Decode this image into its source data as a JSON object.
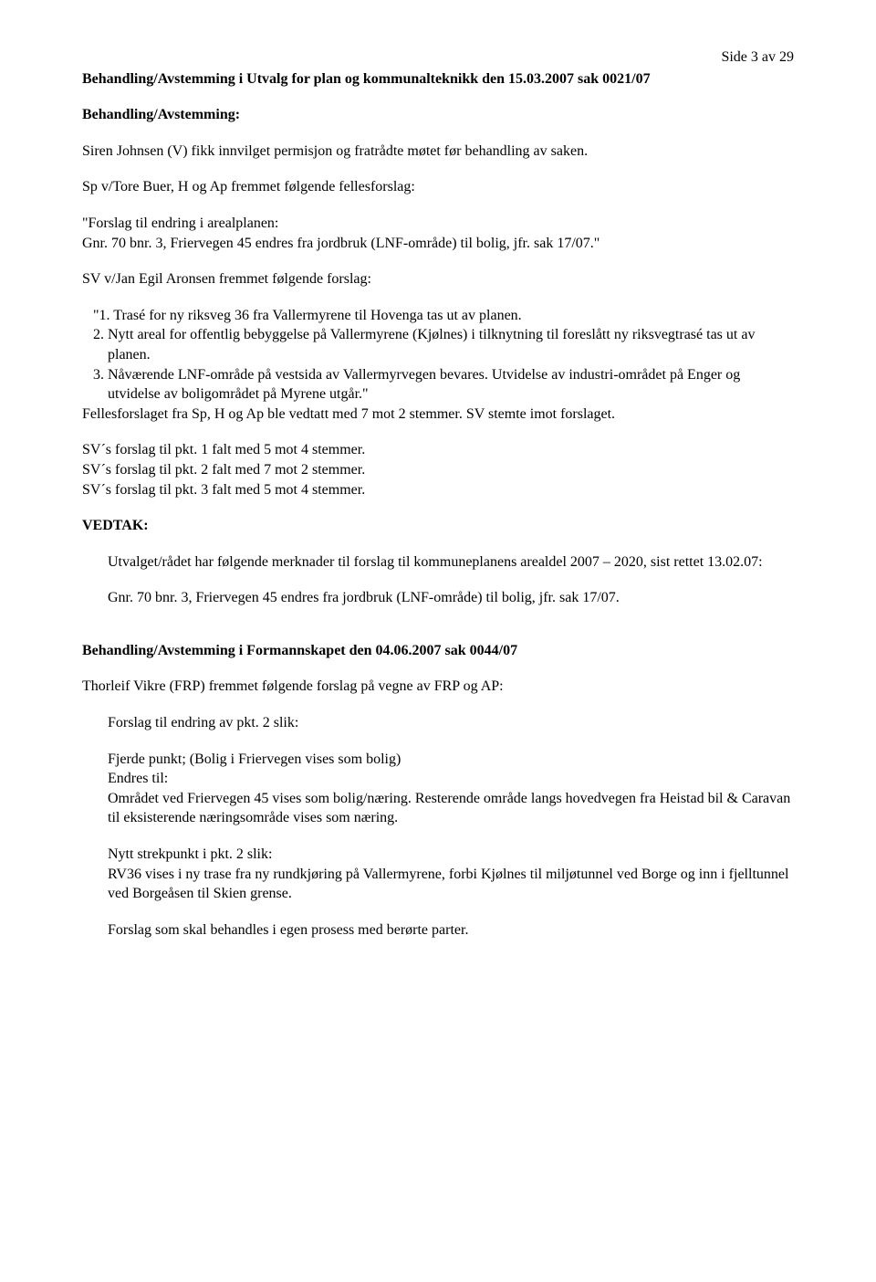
{
  "pageNumber": "Side 3 av 29",
  "title1": "Behandling/Avstemming  i Utvalg for plan og kommunalteknikk den 15.03.2007 sak 0021/07",
  "heading1": "Behandling/Avstemming:",
  "p1": "Siren Johnsen (V) fikk innvilget permisjon og fratrådte møtet før behandling av saken.",
  "p2": "Sp v/Tore Buer, H og Ap fremmet følgende fellesforslag:",
  "p3a": "\"Forslag til endring i arealplanen:",
  "p3b": "  Gnr. 70 bnr. 3, Friervegen 45 endres fra jordbruk (LNF-område) til bolig, jfr. sak 17/07.\"",
  "p4": "SV v/Jan Egil Aronsen fremmet følgende forslag:",
  "li1": "\"1. Trasé for ny riksveg 36 fra Vallermyrene til Hovenga tas ut av planen.",
  "li2": "  2. Nytt areal for offentlig bebyggelse på Vallermyrene (Kjølnes) i tilknytning til foreslått ny riksvegtrasé tas ut av planen.",
  "li3": "  3. Nåværende LNF-område på vestsida av Vallermyrvegen bevares. Utvidelse av industri-området på Enger og utvidelse av boligområdet på Myrene utgår.\"",
  "p5": "Fellesforslaget fra Sp, H og Ap ble vedtatt med 7 mot 2 stemmer. SV stemte imot forslaget.",
  "p6a": "SV´s forslag til pkt. 1 falt med 5 mot 4 stemmer.",
  "p6b": "SV´s forslag til pkt. 2 falt med 7 mot 2 stemmer.",
  "p6c": "SV´s forslag til pkt. 3 falt med 5 mot 4 stemmer.",
  "heading2": "VEDTAK:",
  "p7": "Utvalget/rådet har følgende merknader til forslag til kommuneplanens arealdel 2007 – 2020, sist rettet 13.02.07:",
  "p8": "Gnr. 70 bnr. 3, Friervegen 45 endres fra jordbruk (LNF-område) til bolig, jfr. sak 17/07.",
  "title2": "Behandling/Avstemming  i Formannskapet den 04.06.2007 sak 0044/07",
  "p9": "Thorleif Vikre (FRP) fremmet følgende forslag på vegne av FRP og AP:",
  "p10": "Forslag til endring av pkt. 2 slik:",
  "p11a": "Fjerde punkt; (Bolig i Friervegen vises som bolig)",
  "p11b": "Endres til:",
  "p11c": "Området ved Friervegen 45 vises som bolig/næring. Resterende område langs hovedvegen fra Heistad bil & Caravan til eksisterende næringsområde vises som næring.",
  "p12a": "Nytt strekpunkt i pkt. 2 slik:",
  "p12b": "RV36 vises i ny trase fra ny rundkjøring på Vallermyrene, forbi Kjølnes til miljøtunnel ved Borge og inn i fjelltunnel ved Borgeåsen til Skien grense.",
  "p13": "Forslag som skal behandles i egen prosess med berørte parter."
}
